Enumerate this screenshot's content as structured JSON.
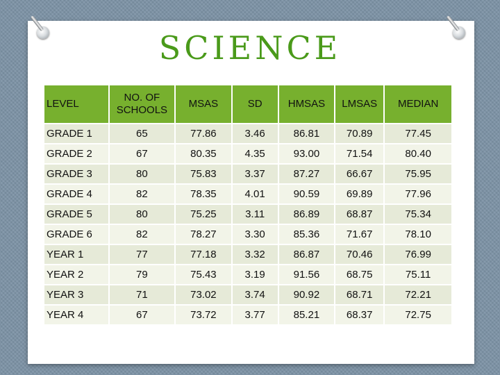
{
  "title": "SCIENCE",
  "table": {
    "headers": [
      "LEVEL",
      "NO. OF SCHOOLS",
      "MSAS",
      "SD",
      "HMSAS",
      "LMSAS",
      "MEDIAN"
    ],
    "rows": [
      [
        "GRADE 1",
        "65",
        "77.86",
        "3.46",
        "86.81",
        "70.89",
        "77.45"
      ],
      [
        "GRADE 2",
        "67",
        "80.35",
        "4.35",
        "93.00",
        "71.54",
        "80.40"
      ],
      [
        "GRADE 3",
        "80",
        "75.83",
        "3.37",
        "87.27",
        "66.67",
        "75.95"
      ],
      [
        "GRADE 4",
        "82",
        "78.35",
        "4.01",
        "90.59",
        "69.89",
        "77.96"
      ],
      [
        "GRADE 5",
        "80",
        "75.25",
        "3.11",
        "86.89",
        "68.87",
        "75.34"
      ],
      [
        "GRADE 6",
        "82",
        "78.27",
        "3.30",
        "85.36",
        "71.67",
        "78.10"
      ],
      [
        "YEAR 1",
        "77",
        "77.18",
        "3.32",
        "86.87",
        "70.46",
        "76.99"
      ],
      [
        "YEAR 2",
        "79",
        "75.43",
        "3.19",
        "91.56",
        "68.75",
        "75.11"
      ],
      [
        "YEAR 3",
        "71",
        "73.02",
        "3.74",
        "90.92",
        "68.71",
        "72.21"
      ],
      [
        "YEAR 4",
        "67",
        "73.72",
        "3.77",
        "85.21",
        "68.37",
        "72.75"
      ]
    ]
  },
  "colors": {
    "title": "#4a9a1a",
    "header_bg": "#77b02e",
    "row_odd_bg": "#e6ead8",
    "row_even_bg": "#f2f4e8",
    "backdrop": "#7d93a6"
  },
  "decor": {
    "left_ring": "binder-ring-icon",
    "right_ring": "binder-ring-icon"
  }
}
